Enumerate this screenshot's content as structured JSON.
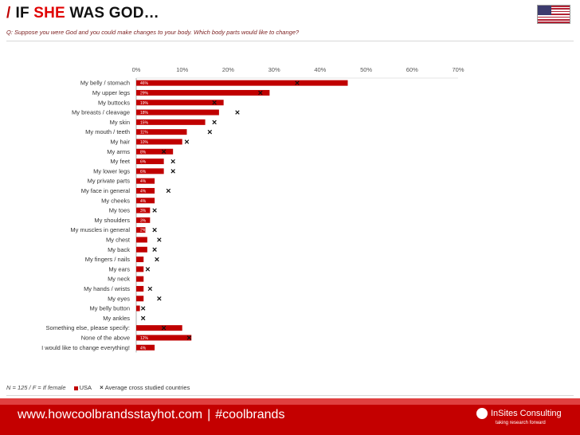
{
  "header": {
    "slash": "/",
    "title_pre": "IF",
    "title_highlight": "SHE",
    "title_post": "WAS GOD…",
    "question": "Q: Suppose you were God and you could make changes to your body. Which body parts would like to change?",
    "flag_icon": "usa-flag-icon"
  },
  "colors": {
    "bar": "#c00000",
    "accent": "#e00000",
    "footer": "#c40000"
  },
  "chart_data": {
    "type": "bar",
    "orientation": "horizontal",
    "x_ticks": [
      "0%",
      "10%",
      "20%",
      "30%",
      "40%",
      "50%",
      "60%",
      "70%"
    ],
    "xlim": [
      0,
      70
    ],
    "series": [
      {
        "name": "USA",
        "kind": "bar"
      },
      {
        "name": "Average cross studied countries",
        "kind": "marker"
      }
    ],
    "categories": [
      "My belly / stomach",
      "My upper legs",
      "My buttocks",
      "My breasts / cleavage",
      "My skin",
      "My mouth / teeth",
      "My hair",
      "My arms",
      "My feet",
      "My lower legs",
      "My private parts",
      "My face in general",
      "My cheeks",
      "My toes",
      "My shoulders",
      "My muscles in general",
      "My chest",
      "My back",
      "My fingers / nails",
      "My ears",
      "My neck",
      "My hands / wrists",
      "My eyes",
      "My belly button",
      "My ankles",
      "Something else, please specify:",
      "None of the above",
      "I would like to change everything!"
    ],
    "usa": [
      46,
      29,
      19,
      18,
      15,
      11,
      10,
      8,
      6,
      6,
      4,
      4,
      4,
      3,
      3,
      2,
      2.4,
      2.4,
      1.6,
      1.6,
      1.6,
      1.6,
      1.6,
      0.8,
      0,
      10,
      12,
      4
    ],
    "usa_labels": [
      "46%",
      "29%",
      "19%",
      "18%",
      "15%",
      "11%",
      "10%",
      "8%",
      "6%",
      "6%",
      "4%",
      "4%",
      "4%",
      "3%",
      "3%",
      "2%",
      "",
      "",
      "",
      "",
      "",
      "",
      "",
      "",
      "",
      "",
      "12%",
      "4%"
    ],
    "average": [
      35,
      27,
      17,
      22,
      17,
      16,
      11,
      6,
      8,
      8,
      null,
      7,
      null,
      4,
      null,
      4,
      5,
      4,
      4.5,
      2.5,
      null,
      3,
      5,
      1.5,
      1.5,
      6,
      11.5,
      null
    ]
  },
  "legend": {
    "note": "N = 125 / F = If female",
    "usa_label": "USA",
    "avg_label": "Average cross studied countries"
  },
  "footer": {
    "url": "www.howcoolbrandsstayhot.com",
    "separator": "|",
    "hashtag": "#coolbrands",
    "brand": "InSites Consulting",
    "tagline": "taking research forward"
  }
}
